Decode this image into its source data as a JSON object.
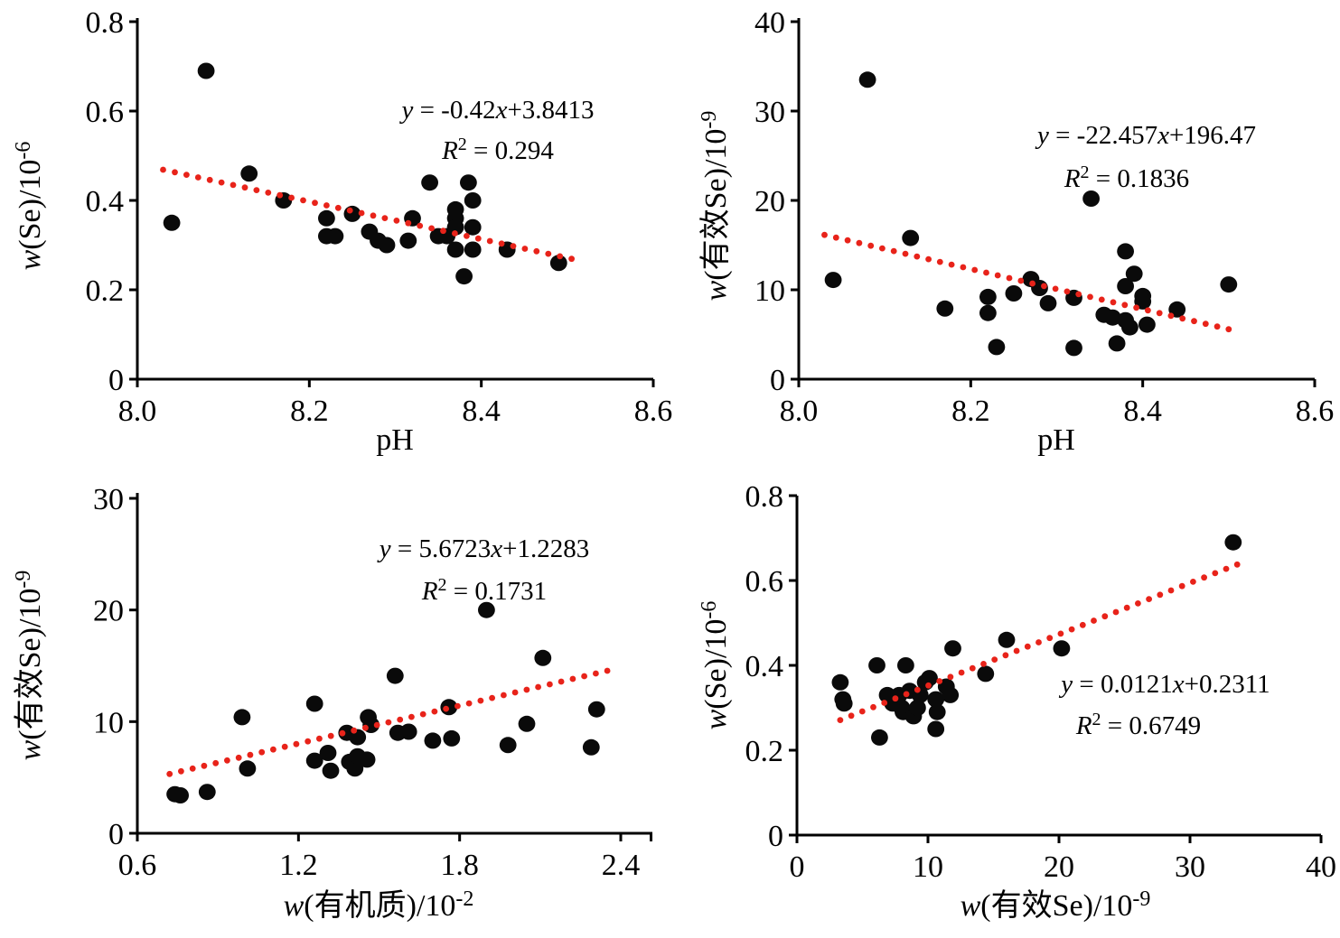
{
  "background": "#ffffff",
  "colors": {
    "point": "#0a0a0a",
    "trend": "#e8231a",
    "axis": "#000000",
    "text": "#000000"
  },
  "chart_data": [
    {
      "id": "se-vs-ph",
      "type": "scatter",
      "xlabel": "pH",
      "ylabel": "w(Se)/10⁻⁶",
      "xlabel_parts": [
        {
          "t": "pH"
        }
      ],
      "ylabel_parts": [
        {
          "t": "w",
          "i": 1
        },
        {
          "t": "(Se)/10"
        },
        {
          "t": "-6",
          "sup": 1
        }
      ],
      "xlim": [
        8.0,
        8.6
      ],
      "ylim": [
        0,
        0.8
      ],
      "xtick_values": [
        8.0,
        8.2,
        8.4,
        8.6
      ],
      "xtick_labels": [
        "8.0",
        "8.2",
        "8.4",
        "8.6"
      ],
      "ytick_values": [
        0,
        0.2,
        0.4,
        0.6,
        0.8
      ],
      "ytick_labels": [
        "0",
        "0.2",
        "0.4",
        "0.6",
        "0.8"
      ],
      "equation": "y = -0.42x+3.8413",
      "r_squared": "R² = 0.294",
      "equation_parts": [
        {
          "t": "y",
          "i": 1
        },
        {
          "t": " = -0.42"
        },
        {
          "t": "x",
          "i": 1
        },
        {
          "t": "+3.8413"
        }
      ],
      "r_squared_parts": [
        {
          "t": "R",
          "i": 1
        },
        {
          "t": "2",
          "sup": 1
        },
        {
          "t": " = 0.294"
        }
      ],
      "trend": {
        "slope": -0.42,
        "intercept": 3.8413,
        "x_start": 8.03,
        "x_end": 8.505,
        "style": "dotted"
      },
      "points": [
        [
          8.04,
          0.35
        ],
        [
          8.08,
          0.69
        ],
        [
          8.13,
          0.46
        ],
        [
          8.17,
          0.4
        ],
        [
          8.22,
          0.36
        ],
        [
          8.22,
          0.32
        ],
        [
          8.23,
          0.32
        ],
        [
          8.25,
          0.37
        ],
        [
          8.27,
          0.33
        ],
        [
          8.28,
          0.31
        ],
        [
          8.29,
          0.3
        ],
        [
          8.315,
          0.31
        ],
        [
          8.32,
          0.36
        ],
        [
          8.34,
          0.44
        ],
        [
          8.35,
          0.32
        ],
        [
          8.36,
          0.32
        ],
        [
          8.37,
          0.36
        ],
        [
          8.37,
          0.38
        ],
        [
          8.37,
          0.34
        ],
        [
          8.37,
          0.29
        ],
        [
          8.38,
          0.23
        ],
        [
          8.385,
          0.44
        ],
        [
          8.39,
          0.4
        ],
        [
          8.39,
          0.34
        ],
        [
          8.39,
          0.29
        ],
        [
          8.43,
          0.29
        ],
        [
          8.49,
          0.26
        ]
      ]
    },
    {
      "id": "available-se-vs-ph",
      "type": "scatter",
      "xlabel": "pH",
      "ylabel": "w(有效Se)/10⁻⁹",
      "xlabel_parts": [
        {
          "t": "pH"
        }
      ],
      "ylabel_parts": [
        {
          "t": "w",
          "i": 1
        },
        {
          "t": "(有效Se)/10"
        },
        {
          "t": "-9",
          "sup": 1
        }
      ],
      "xlim": [
        8.0,
        8.6
      ],
      "ylim": [
        0,
        40
      ],
      "xtick_values": [
        8.0,
        8.2,
        8.4,
        8.6
      ],
      "xtick_labels": [
        "8.0",
        "8.2",
        "8.4",
        "8.6"
      ],
      "ytick_values": [
        0,
        10,
        20,
        30,
        40
      ],
      "ytick_labels": [
        "0",
        "10",
        "20",
        "30",
        "40"
      ],
      "equation": "y = -22.457x+196.47",
      "r_squared": "R² = 0.1836",
      "equation_parts": [
        {
          "t": "y",
          "i": 1
        },
        {
          "t": " = -22.457"
        },
        {
          "t": "x",
          "i": 1
        },
        {
          "t": "+196.47"
        }
      ],
      "r_squared_parts": [
        {
          "t": "R",
          "i": 1
        },
        {
          "t": "2",
          "sup": 1
        },
        {
          "t": " = 0.1836"
        }
      ],
      "trend": {
        "slope": -22.457,
        "intercept": 196.47,
        "x_start": 8.03,
        "x_end": 8.5,
        "style": "dotted"
      },
      "points": [
        [
          8.04,
          11.1
        ],
        [
          8.08,
          33.5
        ],
        [
          8.13,
          15.8
        ],
        [
          8.17,
          7.9
        ],
        [
          8.22,
          9.2
        ],
        [
          8.22,
          7.4
        ],
        [
          8.23,
          3.6
        ],
        [
          8.25,
          9.6
        ],
        [
          8.27,
          11.2
        ],
        [
          8.28,
          10.2
        ],
        [
          8.29,
          8.5
        ],
        [
          8.32,
          9.1
        ],
        [
          8.32,
          3.5
        ],
        [
          8.34,
          20.2
        ],
        [
          8.355,
          7.2
        ],
        [
          8.365,
          6.9
        ],
        [
          8.37,
          4.0
        ],
        [
          8.38,
          14.3
        ],
        [
          8.38,
          10.4
        ],
        [
          8.38,
          6.6
        ],
        [
          8.385,
          5.8
        ],
        [
          8.39,
          11.8
        ],
        [
          8.4,
          9.3
        ],
        [
          8.4,
          8.7
        ],
        [
          8.405,
          6.1
        ],
        [
          8.44,
          7.8
        ],
        [
          8.5,
          10.6
        ]
      ]
    },
    {
      "id": "available-se-vs-organic-matter",
      "type": "scatter",
      "xlabel": "w(有机质)/10⁻²",
      "ylabel": "w(有效Se)/10⁻⁹",
      "xlabel_parts": [
        {
          "t": "w",
          "i": 1
        },
        {
          "t": "(有机质)/10"
        },
        {
          "t": "-2",
          "sup": 1
        }
      ],
      "ylabel_parts": [
        {
          "t": "w",
          "i": 1
        },
        {
          "t": "(有效Se)/10"
        },
        {
          "t": "-9",
          "sup": 1
        }
      ],
      "xlim": [
        0.6,
        2.4
      ],
      "ylim": [
        0,
        30
      ],
      "xtick_values": [
        0.6,
        1.2,
        1.8,
        2.4
      ],
      "xtick_labels": [
        "0.6",
        "1.2",
        "1.8",
        "2.4"
      ],
      "ytick_values": [
        0,
        10,
        20,
        30
      ],
      "ytick_labels": [
        "0",
        "10",
        "20",
        "30"
      ],
      "equation": "y = 5.6723x+1.2283",
      "r_squared": "R² = 0.1731",
      "equation_parts": [
        {
          "t": "y",
          "i": 1
        },
        {
          "t": " = 5.6723"
        },
        {
          "t": "x",
          "i": 1
        },
        {
          "t": "+1.2283"
        }
      ],
      "r_squared_parts": [
        {
          "t": "R",
          "i": 1
        },
        {
          "t": "2",
          "sup": 1
        },
        {
          "t": " = 0.1731"
        }
      ],
      "trend": {
        "slope": 5.6723,
        "intercept": 1.2283,
        "x_start": 0.72,
        "x_end": 2.35,
        "style": "dotted"
      },
      "points": [
        [
          0.74,
          3.5
        ],
        [
          0.76,
          3.4
        ],
        [
          0.86,
          3.7
        ],
        [
          0.99,
          10.4
        ],
        [
          1.01,
          5.8
        ],
        [
          1.26,
          11.6
        ],
        [
          1.26,
          6.5
        ],
        [
          1.31,
          7.2
        ],
        [
          1.32,
          5.6
        ],
        [
          1.38,
          9.0
        ],
        [
          1.39,
          6.4
        ],
        [
          1.41,
          5.8
        ],
        [
          1.42,
          8.6
        ],
        [
          1.42,
          6.9
        ],
        [
          1.455,
          6.6
        ],
        [
          1.46,
          10.4
        ],
        [
          1.47,
          9.7
        ],
        [
          1.56,
          14.1
        ],
        [
          1.57,
          9.0
        ],
        [
          1.61,
          9.1
        ],
        [
          1.7,
          8.3
        ],
        [
          1.76,
          11.3
        ],
        [
          1.77,
          8.5
        ],
        [
          1.9,
          20.0
        ],
        [
          1.98,
          7.9
        ],
        [
          2.05,
          9.8
        ],
        [
          2.11,
          15.7
        ],
        [
          2.29,
          7.7
        ],
        [
          2.31,
          11.1
        ]
      ]
    },
    {
      "id": "se-vs-available-se",
      "type": "scatter",
      "xlabel": "w(有效Se)/10⁻⁹",
      "ylabel": "w(Se)/10⁻⁶",
      "xlabel_parts": [
        {
          "t": "w",
          "i": 1
        },
        {
          "t": "(有效Se)/10"
        },
        {
          "t": "-9",
          "sup": 1
        }
      ],
      "ylabel_parts": [
        {
          "t": "w",
          "i": 1
        },
        {
          "t": "(Se)/10"
        },
        {
          "t": "-6",
          "sup": 1
        }
      ],
      "xlim": [
        0,
        40
      ],
      "ylim": [
        0,
        0.8
      ],
      "xtick_values": [
        0,
        10,
        20,
        30,
        40
      ],
      "xtick_labels": [
        "0",
        "10",
        "20",
        "30",
        "40"
      ],
      "ytick_values": [
        0,
        0.2,
        0.4,
        0.6,
        0.8
      ],
      "ytick_labels": [
        "0",
        "0.2",
        "0.4",
        "0.6",
        "0.8"
      ],
      "equation": "y = 0.0121x+0.2311",
      "r_squared": "R² = 0.6749",
      "equation_parts": [
        {
          "t": "y",
          "i": 1
        },
        {
          "t": " = 0.0121"
        },
        {
          "t": "x",
          "i": 1
        },
        {
          "t": "+0.2311"
        }
      ],
      "r_squared_parts": [
        {
          "t": "R",
          "i": 1
        },
        {
          "t": "2",
          "sup": 1
        },
        {
          "t": " = 0.6749"
        }
      ],
      "trend": {
        "slope": 0.0121,
        "intercept": 0.2311,
        "x_start": 3.3,
        "x_end": 33.6,
        "style": "dotted"
      },
      "points": [
        [
          3.3,
          0.36
        ],
        [
          3.5,
          0.32
        ],
        [
          3.6,
          0.31
        ],
        [
          6.1,
          0.4
        ],
        [
          6.3,
          0.23
        ],
        [
          6.9,
          0.33
        ],
        [
          7.3,
          0.31
        ],
        [
          7.8,
          0.33
        ],
        [
          8.0,
          0.3
        ],
        [
          8.1,
          0.29
        ],
        [
          8.3,
          0.4
        ],
        [
          8.6,
          0.34
        ],
        [
          8.9,
          0.28
        ],
        [
          9.2,
          0.3
        ],
        [
          9.4,
          0.33
        ],
        [
          9.8,
          0.36
        ],
        [
          10.1,
          0.37
        ],
        [
          10.6,
          0.32
        ],
        [
          10.6,
          0.25
        ],
        [
          10.7,
          0.29
        ],
        [
          11.4,
          0.35
        ],
        [
          11.7,
          0.33
        ],
        [
          11.9,
          0.44
        ],
        [
          14.4,
          0.38
        ],
        [
          16.0,
          0.46
        ],
        [
          20.2,
          0.44
        ],
        [
          33.3,
          0.69
        ]
      ]
    }
  ]
}
